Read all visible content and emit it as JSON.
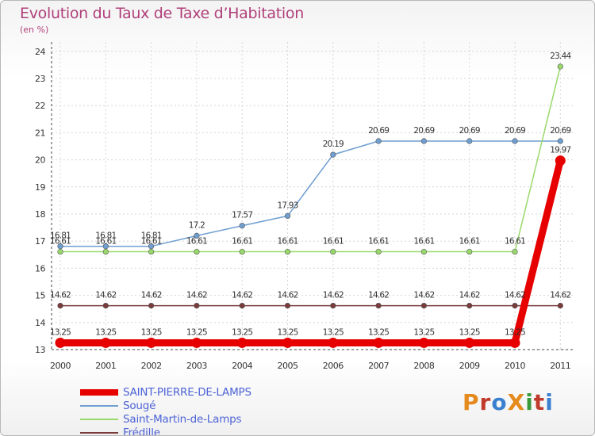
{
  "title": "Evolution du Taux de Taxe d’Habitation",
  "subtitle": "(en %)",
  "logo_text": "ProXiti",
  "logo_colors": [
    "#e58a1d",
    "#c03a2b",
    "#3a7fd0",
    "#e58a1d",
    "#3a9a3a",
    "#c03a2b",
    "#3a7fd0"
  ],
  "chart_data": {
    "type": "line",
    "categories": [
      "2000",
      "2001",
      "2002",
      "2003",
      "2004",
      "2005",
      "2006",
      "2007",
      "2008",
      "2009",
      "2010",
      "2011"
    ],
    "ylim": [
      13,
      24
    ],
    "yticks": [
      "13",
      "14",
      "15",
      "16",
      "17",
      "18",
      "19",
      "20",
      "21",
      "22",
      "23",
      "24"
    ],
    "grid": true,
    "legend_position": "bottom-left",
    "series": [
      {
        "name": "SAINT-PIERRE-DE-LAMPS",
        "color": "#e60000",
        "bold": true,
        "values": [
          13.25,
          13.25,
          13.25,
          13.25,
          13.25,
          13.25,
          13.25,
          13.25,
          13.25,
          13.25,
          13.25,
          19.97
        ],
        "labels": [
          "13.25",
          "13.25",
          "13.25",
          "13.25",
          "13.25",
          "13.25",
          "13.25",
          "13.25",
          "13.25",
          "13.25",
          "13.25",
          "19.97"
        ]
      },
      {
        "name": "Sougé",
        "color": "#6f9ed1",
        "bold": false,
        "values": [
          16.81,
          16.81,
          16.81,
          17.2,
          17.57,
          17.93,
          20.19,
          20.69,
          20.69,
          20.69,
          20.69,
          20.69
        ],
        "labels": [
          "16.81",
          "16.81",
          "16.81",
          "17.2",
          "17.57",
          "17.93",
          "20.19",
          "20.69",
          "20.69",
          "20.69",
          "20.69",
          "20.69"
        ]
      },
      {
        "name": "Saint-Martin-de-Lamps",
        "color": "#99d96b",
        "bold": false,
        "values": [
          16.61,
          16.61,
          16.61,
          16.61,
          16.61,
          16.61,
          16.61,
          16.61,
          16.61,
          16.61,
          16.61,
          23.44
        ],
        "labels": [
          "16.61",
          "16.61",
          "16.61",
          "16.61",
          "16.61",
          "16.61",
          "16.61",
          "16.61",
          "16.61",
          "16.61",
          "16.61",
          "23.44"
        ]
      },
      {
        "name": "Frédille",
        "color": "#7a3b3b",
        "bold": false,
        "values": [
          14.62,
          14.62,
          14.62,
          14.62,
          14.62,
          14.62,
          14.62,
          14.62,
          14.62,
          14.62,
          14.62,
          14.62
        ],
        "labels": [
          "14.62",
          "14.62",
          "14.62",
          "14.62",
          "14.62",
          "14.62",
          "14.62",
          "14.62",
          "14.62",
          "14.62",
          "14.62",
          "14.62"
        ]
      }
    ]
  }
}
